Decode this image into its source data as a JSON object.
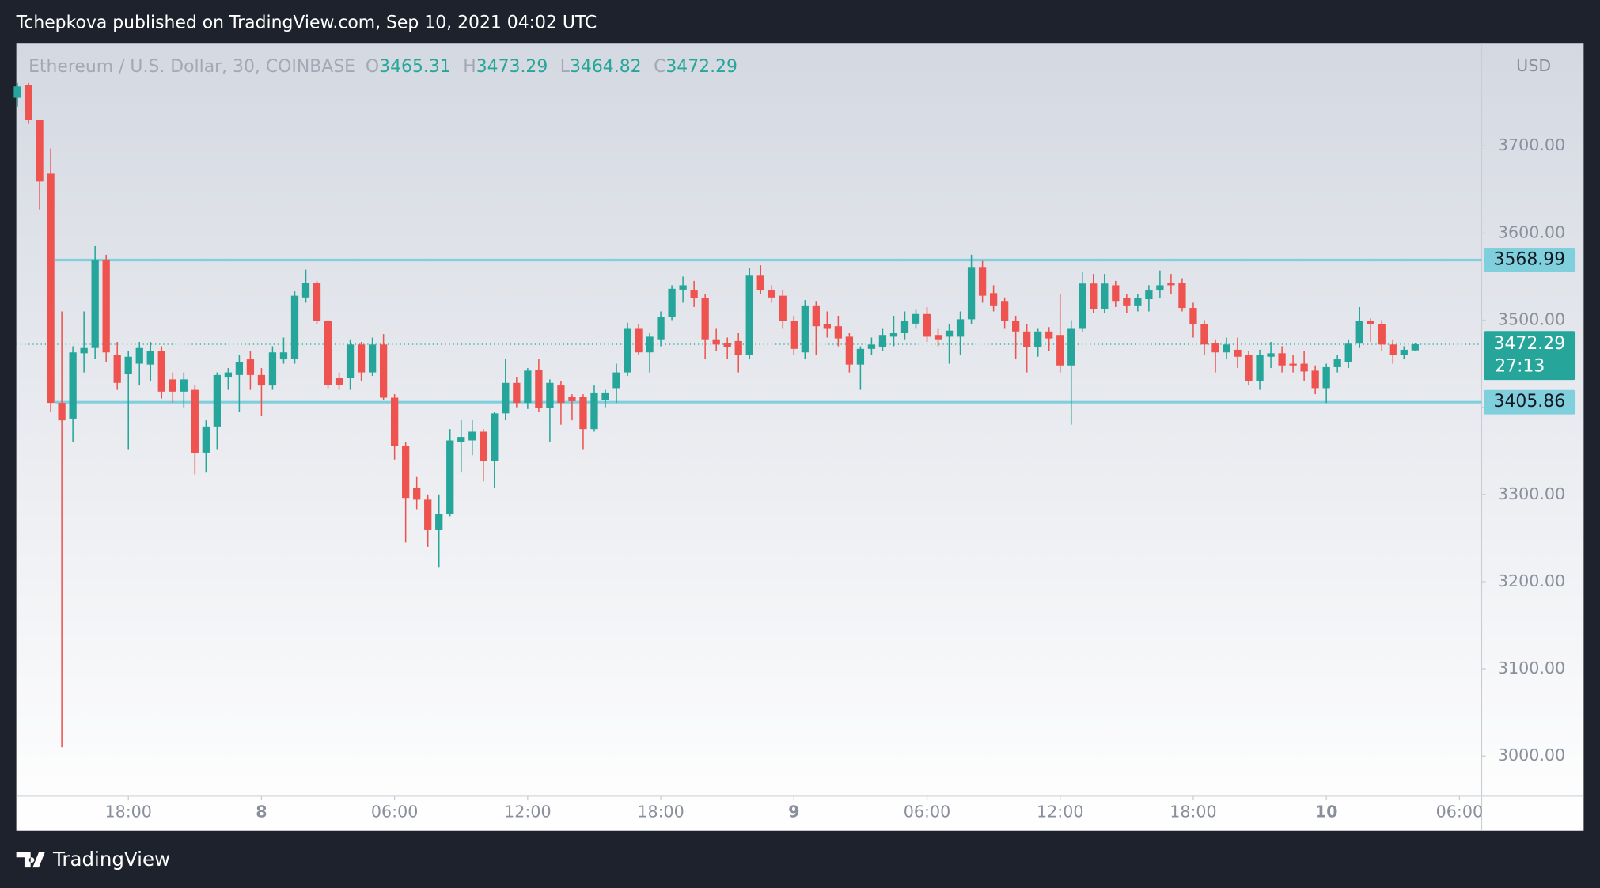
{
  "chart_data": {
    "type": "candlestick",
    "published": "Tchepkova published on TradingView.com, Sep 10, 2021 04:02 UTC",
    "brand": "TradingView",
    "currency": "USD",
    "legend": {
      "symbol": "Ethereum / U.S. Dollar, 30, COINBASE",
      "items": [
        {
          "key": "O",
          "value": 3465.31
        },
        {
          "key": "H",
          "value": 3473.29
        },
        {
          "key": "L",
          "value": 3464.82
        },
        {
          "key": "C",
          "value": 3472.29
        }
      ]
    },
    "up_color": "#26a69a",
    "down_color": "#ef5350",
    "level_color": "#80cfdc",
    "x": [
      -11,
      -10.5,
      -10,
      -9.5,
      -9,
      -8.5,
      -8,
      -7.5,
      -7,
      -6.5,
      -6,
      -5.5,
      -5,
      -4.5,
      -4,
      -3.5,
      -3,
      -2.5,
      -2,
      -1.5,
      -1,
      -0.5,
      0,
      0.5,
      1,
      1.5,
      2,
      2.5,
      3,
      3.5,
      4,
      4.5,
      5,
      5.5,
      6,
      6.5,
      7,
      7.5,
      8,
      8.5,
      9,
      9.5,
      10,
      10.5,
      11,
      11.5,
      12,
      12.5,
      13,
      13.5,
      14,
      14.5,
      15,
      15.5,
      16,
      16.5,
      17,
      17.5,
      18,
      18.5,
      19,
      19.5,
      20,
      20.5,
      21,
      21.5,
      22,
      22.5,
      23,
      23.5,
      24,
      24.5,
      25,
      25.5,
      26,
      26.5,
      27,
      27.5,
      28,
      28.5,
      29,
      29.5,
      30,
      30.5,
      31,
      31.5,
      32,
      32.5,
      33,
      33.5,
      34,
      34.5,
      35,
      35.5,
      36,
      36.5,
      37,
      37.5,
      38,
      38.5,
      39,
      39.5,
      40,
      40.5,
      41,
      41.5,
      42,
      42.5,
      43,
      43.5,
      44,
      44.5,
      45,
      45.5,
      46,
      46.5,
      47,
      47.5,
      48,
      48.5,
      49,
      49.5,
      50,
      50.5,
      51,
      51.5,
      52
    ],
    "open": [
      3755,
      3770,
      3730,
      3668,
      3405,
      3387,
      3462,
      3468,
      3569,
      3460,
      3438,
      3450,
      3449,
      3465,
      3432,
      3418,
      3420,
      3348,
      3378,
      3435,
      3437,
      3455,
      3437,
      3425,
      3455,
      3455,
      3526,
      3543,
      3499,
      3434,
      3434,
      3472,
      3440,
      3472,
      3411,
      3356,
      3308,
      3294,
      3259,
      3278,
      3360,
      3362,
      3372,
      3338,
      3393,
      3428,
      3405,
      3443,
      3399,
      3425,
      3412,
      3412,
      3375,
      3408,
      3422,
      3440,
      3490,
      3463,
      3478,
      3504,
      3535,
      3534,
      3525,
      3478,
      3474,
      3476,
      3460,
      3551,
      3534,
      3528,
      3499,
      3463,
      3516,
      3495,
      3493,
      3481,
      3449,
      3467,
      3469,
      3481,
      3485,
      3496,
      3507,
      3483,
      3481,
      3481,
      3501,
      3561,
      3531,
      3522,
      3499,
      3487,
      3469,
      3487,
      3483,
      3448,
      3490,
      3542,
      3513,
      3540,
      3525,
      3516,
      3524,
      3534,
      3543,
      3543,
      3514,
      3495,
      3474,
      3463,
      3466,
      3460,
      3430,
      3458,
      3462,
      3450,
      3450,
      3442,
      3422,
      3446,
      3452,
      3473,
      3499,
      3495,
      3472,
      3460,
      3465.31
    ],
    "high": [
      3772,
      3772,
      3730,
      3697,
      3510,
      3470,
      3510,
      3585,
      3575,
      3475,
      3465,
      3475,
      3475,
      3470,
      3440,
      3440,
      3425,
      3385,
      3440,
      3445,
      3460,
      3465,
      3445,
      3470,
      3480,
      3533,
      3558,
      3545,
      3500,
      3440,
      3478,
      3475,
      3480,
      3484,
      3415,
      3360,
      3320,
      3300,
      3300,
      3375,
      3385,
      3385,
      3375,
      3395,
      3455,
      3435,
      3445,
      3455,
      3432,
      3430,
      3415,
      3415,
      3425,
      3420,
      3450,
      3497,
      3495,
      3485,
      3510,
      3540,
      3550,
      3545,
      3530,
      3490,
      3480,
      3485,
      3560,
      3563,
      3540,
      3535,
      3505,
      3523,
      3522,
      3510,
      3505,
      3485,
      3470,
      3480,
      3490,
      3505,
      3510,
      3512,
      3515,
      3490,
      3495,
      3510,
      3575,
      3568,
      3540,
      3526,
      3505,
      3495,
      3490,
      3492,
      3530,
      3500,
      3555,
      3553,
      3553,
      3545,
      3530,
      3530,
      3540,
      3557,
      3553,
      3548,
      3520,
      3500,
      3478,
      3480,
      3480,
      3465,
      3466,
      3475,
      3470,
      3460,
      3465,
      3448,
      3450,
      3460,
      3478,
      3515,
      3502,
      3500,
      3478,
      3470,
      3473.29
    ],
    "low": [
      3745,
      3725,
      3627,
      3395,
      3010,
      3360,
      3440,
      3455,
      3452,
      3420,
      3352,
      3425,
      3430,
      3410,
      3405,
      3400,
      3323,
      3325,
      3352,
      3420,
      3395,
      3420,
      3390,
      3420,
      3450,
      3450,
      3520,
      3495,
      3422,
      3420,
      3420,
      3430,
      3436,
      3408,
      3340,
      3245,
      3283,
      3240,
      3216,
      3275,
      3325,
      3345,
      3315,
      3308,
      3385,
      3400,
      3398,
      3395,
      3360,
      3380,
      3385,
      3352,
      3372,
      3400,
      3405,
      3436,
      3460,
      3440,
      3470,
      3500,
      3520,
      3515,
      3455,
      3465,
      3455,
      3440,
      3455,
      3530,
      3520,
      3490,
      3460,
      3455,
      3460,
      3480,
      3470,
      3440,
      3420,
      3460,
      3465,
      3470,
      3478,
      3490,
      3475,
      3470,
      3450,
      3460,
      3495,
      3520,
      3510,
      3490,
      3455,
      3440,
      3458,
      3465,
      3440,
      3380,
      3486,
      3508,
      3508,
      3515,
      3508,
      3510,
      3510,
      3525,
      3530,
      3510,
      3480,
      3460,
      3440,
      3455,
      3445,
      3425,
      3420,
      3445,
      3440,
      3440,
      3430,
      3415,
      3405,
      3440,
      3445,
      3468,
      3475,
      3465,
      3450,
      3455,
      3464.82
    ],
    "close": [
      3768,
      3730,
      3659,
      3405,
      3385,
      3463,
      3468,
      3569,
      3463,
      3428,
      3458,
      3468,
      3465,
      3418,
      3418,
      3432,
      3347,
      3378,
      3437,
      3440,
      3452,
      3437,
      3425,
      3463,
      3463,
      3528,
      3543,
      3499,
      3426,
      3426,
      3472,
      3440,
      3472,
      3411,
      3356,
      3296,
      3294,
      3259,
      3278,
      3362,
      3366,
      3372,
      3338,
      3393,
      3428,
      3405,
      3442,
      3399,
      3428,
      3405,
      3407,
      3375,
      3417,
      3417,
      3440,
      3490,
      3463,
      3481,
      3504,
      3536,
      3540,
      3525,
      3478,
      3472,
      3469,
      3460,
      3551,
      3534,
      3526,
      3499,
      3467,
      3516,
      3493,
      3490,
      3479,
      3449,
      3467,
      3472,
      3483,
      3485,
      3499,
      3507,
      3481,
      3478,
      3488,
      3501,
      3561,
      3528,
      3516,
      3499,
      3487,
      3469,
      3487,
      3479,
      3448,
      3490,
      3542,
      3513,
      3542,
      3522,
      3516,
      3525,
      3534,
      3540,
      3540,
      3514,
      3495,
      3472,
      3463,
      3472,
      3458,
      3430,
      3460,
      3462,
      3448,
      3448,
      3441,
      3422,
      3446,
      3455,
      3473,
      3499,
      3495,
      3472,
      3460,
      3466,
      3472.29
    ],
    "xlim": [
      -11.05,
      55
    ],
    "xticks": [
      {
        "value": -6,
        "label": "18:00"
      },
      {
        "value": 0,
        "label": "8"
      },
      {
        "value": 6,
        "label": "06:00"
      },
      {
        "value": 12,
        "label": "12:00"
      },
      {
        "value": 18,
        "label": "18:00"
      },
      {
        "value": 24,
        "label": "9"
      },
      {
        "value": 30,
        "label": "06:00"
      },
      {
        "value": 36,
        "label": "12:00"
      },
      {
        "value": 42,
        "label": "18:00"
      },
      {
        "value": 48,
        "label": "10"
      },
      {
        "value": 54,
        "label": "06:00"
      }
    ],
    "ylim": [
      2954,
      3818
    ],
    "yticks": [
      {
        "value": 3000,
        "label": "3000.00"
      },
      {
        "value": 3100,
        "label": "3100.00"
      },
      {
        "value": 3200,
        "label": "3200.00"
      },
      {
        "value": 3300,
        "label": "3300.00"
      },
      {
        "value": 3400,
        "label": "3400.00"
      },
      {
        "value": 3500,
        "label": "3500.00"
      },
      {
        "value": 3600,
        "label": "3600.00"
      },
      {
        "value": 3700,
        "label": "3700.00"
      }
    ],
    "levels": [
      3568.99,
      3405.86
    ],
    "last_price": {
      "value": 3472.29,
      "countdown": "27:13"
    }
  }
}
